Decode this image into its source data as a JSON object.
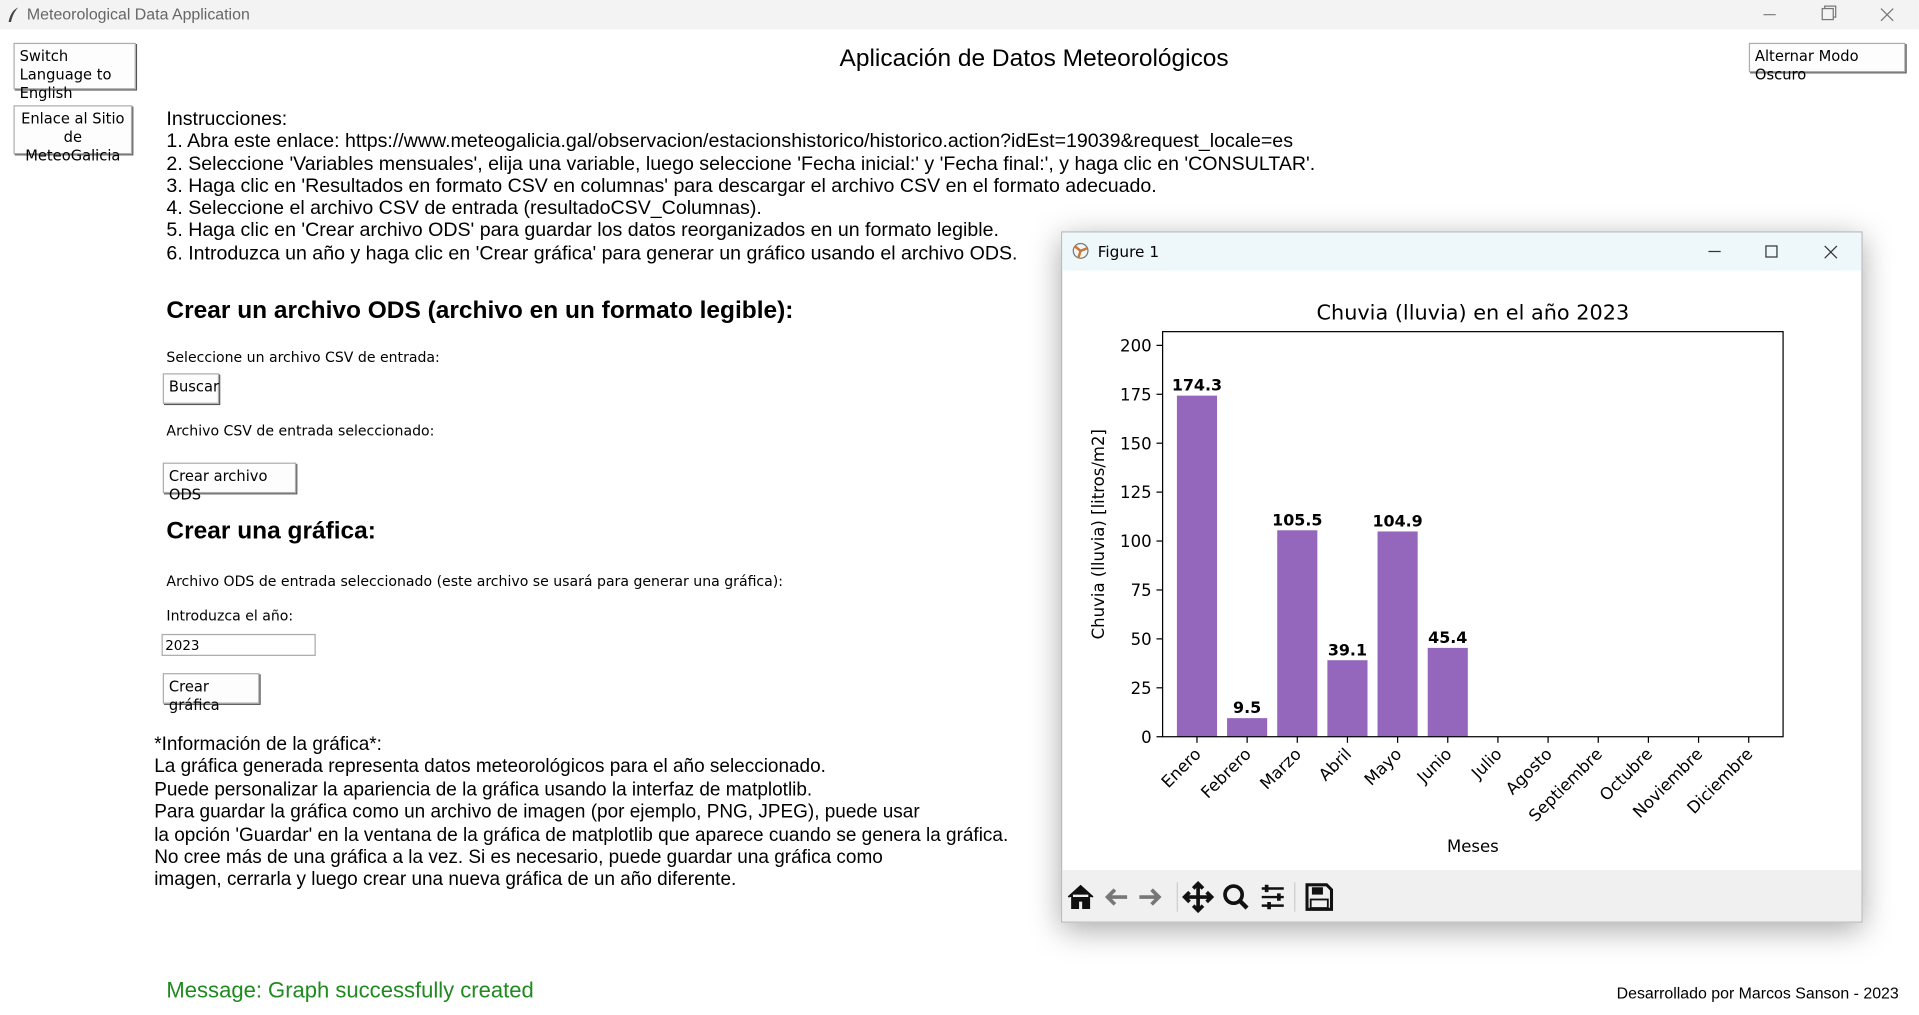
{
  "window": {
    "title": "Meteorological Data Application"
  },
  "header": {
    "title": "Aplicación de Datos Meteorológicos"
  },
  "buttons": {
    "switch_language": "Switch Language to English",
    "link_meteogalicia": "Enlace al Sitio de MeteoGalicia",
    "dark_mode": "Alternar Modo Oscuro"
  },
  "instructions": {
    "heading": "Instrucciones:",
    "steps": [
      "1. Abra este enlace: https://www.meteogalicia.gal/observacion/estacionshistorico/historico.action?idEst=19039&request_locale=es",
      "2. Seleccione 'Variables mensuales', elija una variable, luego seleccione 'Fecha inicial:' y 'Fecha final:', y haga clic en 'CONSULTAR'.",
      "3. Haga clic en 'Resultados en formato CSV en columnas' para descargar el archivo CSV en el formato adecuado.",
      "4. Seleccione el archivo CSV de entrada (resultadoCSV_Columnas).",
      "5. Haga clic en 'Crear archivo ODS' para guardar los datos reorganizados en un formato legible.",
      "6. Introduzca un año y haga clic en 'Crear gráfica' para generar un gráfico usando el archivo ODS."
    ]
  },
  "ods_section": {
    "heading": "Crear un archivo ODS (archivo en un formato legible):",
    "select_label": "Seleccione un archivo CSV de entrada:",
    "browse_button": "Buscar",
    "selected_label": "Archivo CSV de entrada seleccionado:",
    "create_button": "Crear archivo ODS"
  },
  "graph_section": {
    "heading": "Crear una gráfica:",
    "selected_label": "Archivo ODS de entrada seleccionado (este archivo se usará para generar una gráfica):",
    "year_label": "Introduzca el año:",
    "year_value": "2023",
    "create_button": "Crear gráfica"
  },
  "info": {
    "lines": [
      "*Información de la gráfica*:",
      "La gráfica generada representa datos meteorológicos para el año seleccionado.",
      "Puede personalizar la apariencia de la gráfica usando la interfaz de matplotlib.",
      "Para guardar la gráfica como un archivo de imagen (por ejemplo, PNG, JPEG), puede usar",
      "la opción 'Guardar' en la ventana de la gráfica de matplotlib que aparece cuando se genera la gráfica.",
      "No cree más de una gráfica a la vez. Si es necesario, puede guardar una gráfica como",
      "imagen, cerrarla y luego crear una nueva gráfica de un año diferente."
    ]
  },
  "status_message": "Message: Graph successfully created",
  "footer": "Desarrollado por Marcos Sanson - 2023",
  "figure_window": {
    "title": "Figure 1"
  },
  "chart_data": {
    "type": "bar",
    "title": "Chuvia (lluvia) en el año 2023",
    "x_label": "Meses",
    "y_label": "Chuvia (lluvia) [litros/m2]",
    "categories": [
      "Enero",
      "Febrero",
      "Marzo",
      "Abril",
      "Mayo",
      "Junio",
      "Julio",
      "Agosto",
      "Septiembre",
      "Octubre",
      "Noviembre",
      "Diciembre"
    ],
    "values": [
      174.3,
      9.5,
      105.5,
      39.1,
      104.9,
      45.4,
      null,
      null,
      null,
      null,
      null,
      null
    ],
    "color": "#9467bd",
    "ylim": [
      0,
      207
    ],
    "yticks": [
      0,
      25,
      50,
      75,
      100,
      125,
      150,
      175,
      200
    ],
    "grid": false
  }
}
